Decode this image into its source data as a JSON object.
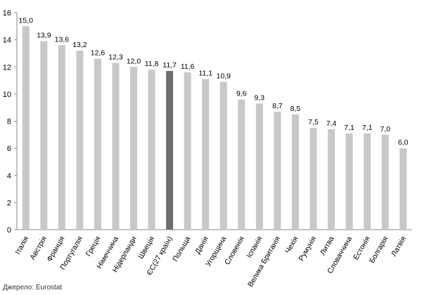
{
  "chart_data": {
    "type": "bar",
    "categories": [
      "Італія",
      "Австрія",
      "Франція",
      "Португалія",
      "Греція",
      "Німеччина",
      "Нідерланди",
      "Швеція",
      "ЄС(27 країн)",
      "Польща",
      "Данія",
      "Угорщина",
      "Словенія",
      "Іспанія",
      "Велика Британія",
      "Чехія",
      "Румунія",
      "Литва",
      "Словаччина",
      "Естонія",
      "Болгарія",
      "Латвія"
    ],
    "values": [
      15.0,
      13.9,
      13.6,
      13.2,
      12.6,
      12.3,
      12.0,
      11.8,
      11.7,
      11.6,
      11.1,
      10.9,
      9.6,
      9.3,
      8.7,
      8.5,
      7.5,
      7.4,
      7.1,
      7.1,
      7.0,
      6.0
    ],
    "data_labels": [
      "15,0",
      "13,9",
      "13,6",
      "13,2",
      "12,6",
      "12,3",
      "12,0",
      "11,8",
      "11,7",
      "11,6",
      "11,1",
      "10,9",
      "9,6",
      "9,3",
      "8,7",
      "8,5",
      "7,5",
      "7,4",
      "7,1",
      "7,1",
      "7,0",
      "6,0"
    ],
    "highlight_index": 8,
    "ylim": [
      0,
      16
    ],
    "yticks": [
      0,
      2,
      4,
      6,
      8,
      10,
      12,
      14,
      16
    ],
    "title": "",
    "xlabel": "",
    "ylabel": "",
    "grid": false,
    "legend": "none",
    "colors": {
      "bar": "#c8c8c8",
      "highlight": "#6e6e6e",
      "axis": "#888888"
    }
  },
  "footer": {
    "source": "Джерело: Eurostat"
  }
}
